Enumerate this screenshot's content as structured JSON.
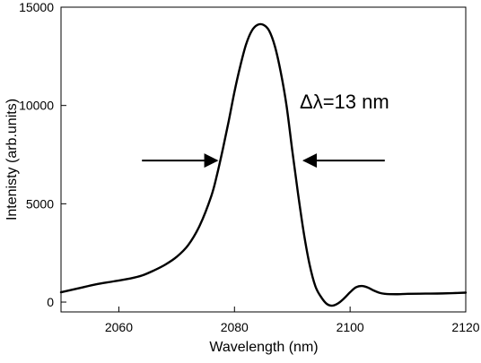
{
  "chart_data": {
    "type": "line",
    "title": "",
    "xlabel": "Wavelength (nm)",
    "ylabel": "Intenisty (arb.units)",
    "xlim": [
      2050,
      2120
    ],
    "ylim": [
      -500,
      15000
    ],
    "x_ticks": [
      2060,
      2080,
      2100,
      2120
    ],
    "y_ticks": [
      0,
      5000,
      10000,
      15000
    ],
    "grid": false,
    "legend": "none",
    "series": [
      {
        "x": [
          2050,
          2053,
          2056,
          2059,
          2062,
          2064,
          2066,
          2068,
          2070,
          2072,
          2074,
          2076,
          2077,
          2078,
          2079,
          2080,
          2081,
          2082,
          2083,
          2084,
          2085,
          2086,
          2087,
          2088,
          2089,
          2090,
          2091,
          2092,
          2093,
          2094,
          2095,
          2096,
          2097,
          2098,
          2099,
          2100,
          2101,
          2102,
          2103,
          2104,
          2105,
          2106,
          2108,
          2110,
          2113,
          2116,
          2120
        ],
        "values": [
          500,
          700,
          900,
          1050,
          1200,
          1350,
          1600,
          1900,
          2300,
          2900,
          3900,
          5400,
          6500,
          7800,
          9200,
          10700,
          12000,
          13100,
          13800,
          14100,
          14100,
          13800,
          13000,
          11700,
          10000,
          7700,
          5500,
          3500,
          1900,
          800,
          250,
          -100,
          -180,
          -50,
          200,
          500,
          750,
          820,
          750,
          600,
          480,
          420,
          400,
          420,
          430,
          440,
          480
        ]
      }
    ]
  },
  "annotations": {
    "delta_label": "Δλ=13 nm",
    "left_arrow": {
      "x_from": 2064,
      "x_to": 2077,
      "y": 7200
    },
    "right_arrow": {
      "x_from": 2106,
      "x_to": 2092,
      "y": 7200
    }
  },
  "colors": {
    "curve": "#000000",
    "axis": "#000000",
    "background": "#ffffff"
  }
}
